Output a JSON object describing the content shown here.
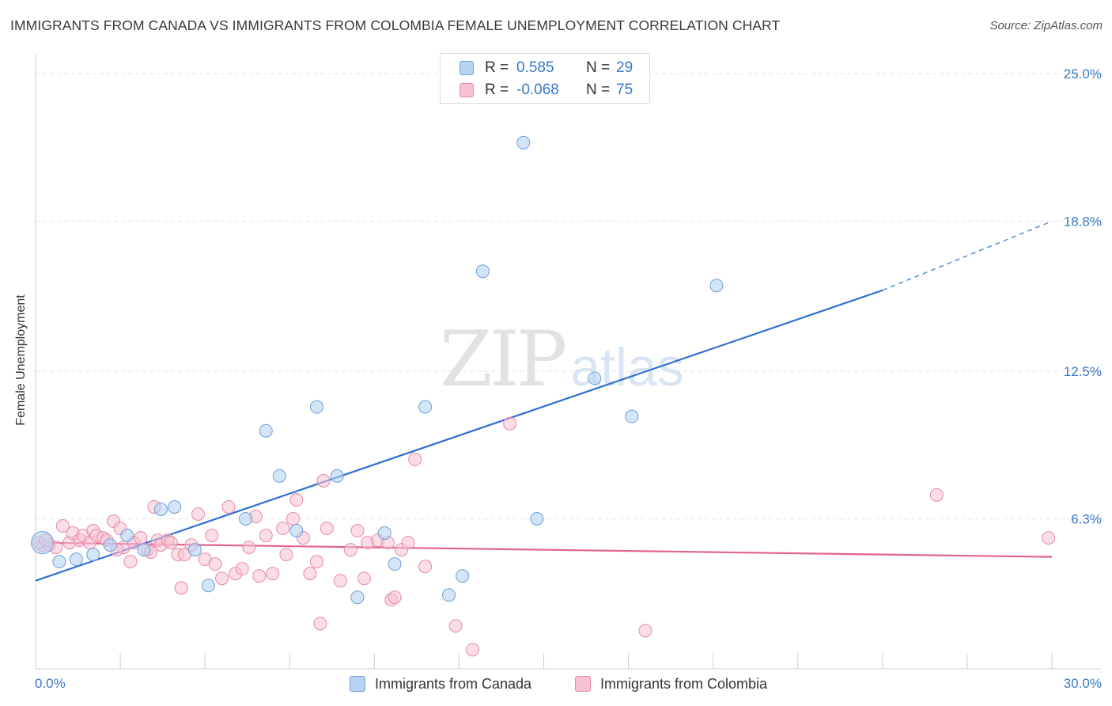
{
  "title": "IMMIGRANTS FROM CANADA VS IMMIGRANTS FROM COLOMBIA FEMALE UNEMPLOYMENT CORRELATION CHART",
  "source": "Source: ZipAtlas.com",
  "watermark": {
    "zip": "ZIP",
    "atlas": "atlas"
  },
  "legend": {
    "rows": [
      {
        "r_label": "R =",
        "r_value": "0.585",
        "n_label": "N =",
        "n_value": "29"
      },
      {
        "r_label": "R =",
        "r_value": "-0.068",
        "n_label": "N =",
        "n_value": "75"
      }
    ]
  },
  "bottom_legend": {
    "canada": "Immigrants from Canada",
    "colombia": "Immigrants from Colombia"
  },
  "colors": {
    "canada_fill": "#b8d3f3",
    "canada_stroke": "#6e9fd8",
    "canada_line": "#2f6fd0",
    "colombia_fill": "#f7c1d1",
    "colombia_stroke": "#e68aa8",
    "colombia_line": "#e0648e",
    "tick_label": "#3a78c9",
    "grid": "#e2e2e2"
  },
  "chart_data": {
    "type": "scatter",
    "xlabel": "",
    "ylabel": "Female Unemployment",
    "xlim": [
      0,
      30
    ],
    "ylim": [
      0,
      25.5
    ],
    "y_ticks": [
      6.3,
      12.5,
      18.8,
      25.0
    ],
    "y_tick_labels": [
      "6.3%",
      "12.5%",
      "18.8%",
      "25.0%"
    ],
    "x_tick_labels": [
      "0.0%",
      "30.0%"
    ],
    "series": [
      {
        "name": "Immigrants from Canada",
        "points": [
          [
            0.2,
            5.3
          ],
          [
            0.7,
            4.5
          ],
          [
            1.2,
            4.6
          ],
          [
            1.7,
            4.8
          ],
          [
            2.2,
            5.2
          ],
          [
            2.7,
            5.6
          ],
          [
            3.2,
            5.0
          ],
          [
            3.7,
            6.7
          ],
          [
            4.1,
            6.8
          ],
          [
            4.7,
            5.0
          ],
          [
            5.1,
            3.5
          ],
          [
            6.2,
            6.3
          ],
          [
            6.8,
            10.0
          ],
          [
            7.2,
            8.1
          ],
          [
            7.7,
            5.8
          ],
          [
            8.3,
            11.0
          ],
          [
            8.9,
            8.1
          ],
          [
            9.5,
            3.0
          ],
          [
            10.3,
            5.7
          ],
          [
            10.6,
            4.4
          ],
          [
            11.5,
            11.0
          ],
          [
            12.2,
            3.1
          ],
          [
            12.6,
            3.9
          ],
          [
            13.2,
            16.7
          ],
          [
            14.4,
            22.1
          ],
          [
            14.8,
            6.3
          ],
          [
            16.5,
            12.2
          ],
          [
            17.6,
            10.6
          ],
          [
            20.1,
            16.1
          ]
        ],
        "trend": {
          "x": [
            0,
            25.0
          ],
          "y": [
            3.7,
            15.9
          ],
          "dashed_to": [
            30,
            18.8
          ]
        }
      },
      {
        "name": "Immigrants from Colombia",
        "points": [
          [
            0.2,
            5.2
          ],
          [
            0.4,
            5.2
          ],
          [
            0.6,
            5.1
          ],
          [
            0.8,
            6.0
          ],
          [
            1.0,
            5.3
          ],
          [
            1.1,
            5.7
          ],
          [
            1.3,
            5.4
          ],
          [
            1.4,
            5.6
          ],
          [
            1.6,
            5.3
          ],
          [
            1.7,
            5.8
          ],
          [
            1.8,
            5.6
          ],
          [
            2.0,
            5.5
          ],
          [
            2.1,
            5.4
          ],
          [
            2.3,
            6.2
          ],
          [
            2.5,
            5.9
          ],
          [
            2.6,
            5.1
          ],
          [
            2.8,
            4.5
          ],
          [
            2.9,
            5.3
          ],
          [
            3.1,
            5.5
          ],
          [
            3.3,
            5.0
          ],
          [
            3.5,
            6.8
          ],
          [
            3.6,
            5.4
          ],
          [
            3.7,
            5.2
          ],
          [
            3.9,
            5.4
          ],
          [
            4.0,
            5.3
          ],
          [
            4.2,
            4.8
          ],
          [
            4.3,
            3.4
          ],
          [
            4.4,
            4.8
          ],
          [
            4.6,
            5.2
          ],
          [
            4.8,
            6.5
          ],
          [
            5.0,
            4.6
          ],
          [
            5.2,
            5.6
          ],
          [
            5.3,
            4.4
          ],
          [
            5.5,
            3.8
          ],
          [
            5.7,
            6.8
          ],
          [
            5.9,
            4.0
          ],
          [
            6.1,
            4.2
          ],
          [
            6.3,
            5.1
          ],
          [
            6.5,
            6.4
          ],
          [
            6.6,
            3.9
          ],
          [
            6.8,
            5.6
          ],
          [
            7.0,
            4.0
          ],
          [
            7.3,
            5.9
          ],
          [
            7.4,
            4.8
          ],
          [
            7.6,
            6.3
          ],
          [
            7.7,
            7.1
          ],
          [
            7.9,
            5.5
          ],
          [
            8.1,
            4.0
          ],
          [
            8.3,
            4.5
          ],
          [
            8.4,
            1.9
          ],
          [
            8.6,
            5.9
          ],
          [
            8.5,
            7.9
          ],
          [
            9.0,
            3.7
          ],
          [
            9.3,
            5.0
          ],
          [
            9.5,
            5.8
          ],
          [
            9.7,
            3.8
          ],
          [
            9.8,
            5.3
          ],
          [
            10.1,
            5.4
          ],
          [
            10.4,
            5.3
          ],
          [
            10.5,
            2.9
          ],
          [
            10.6,
            3.0
          ],
          [
            10.8,
            5.0
          ],
          [
            11.0,
            5.3
          ],
          [
            11.2,
            8.8
          ],
          [
            11.5,
            4.3
          ],
          [
            12.4,
            1.8
          ],
          [
            12.9,
            0.8
          ],
          [
            14.0,
            10.3
          ],
          [
            18.0,
            1.6
          ],
          [
            26.6,
            7.3
          ],
          [
            29.9,
            5.5
          ],
          [
            0.1,
            5.3
          ],
          [
            0.3,
            5.4
          ],
          [
            2.4,
            5.0
          ],
          [
            3.4,
            4.9
          ]
        ],
        "trend": {
          "x": [
            0,
            30
          ],
          "y": [
            5.3,
            4.7
          ]
        }
      }
    ]
  }
}
